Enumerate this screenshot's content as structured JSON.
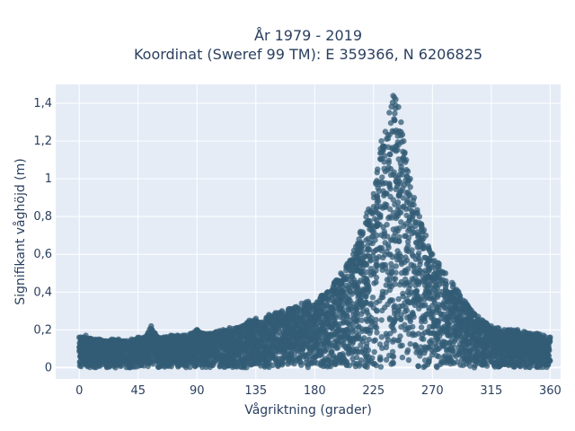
{
  "chart_data": {
    "type": "scatter",
    "title_line1": "År 1979 - 2019",
    "title_line2": "Koordinat (Sweref 99 TM): E 359366, N 6206825",
    "xlabel": "Vågriktning (grader)",
    "ylabel": "Signifikant våghöjd (m)",
    "xlim": [
      -18,
      368
    ],
    "ylim": [
      -0.06,
      1.5
    ],
    "x_ticks": [
      0,
      45,
      90,
      135,
      180,
      225,
      270,
      315,
      360
    ],
    "x_tick_labels": [
      "0",
      "45",
      "90",
      "135",
      "180",
      "225",
      "270",
      "315",
      "360"
    ],
    "y_ticks": [
      0,
      0.2,
      0.4,
      0.6,
      0.8,
      1.0,
      1.2,
      1.4
    ],
    "y_tick_labels": [
      "0",
      "0,2",
      "0,4",
      "0,6",
      "0,8",
      "1",
      "1,2",
      "1,4"
    ],
    "grid": true,
    "marker_color": "#335c75",
    "background": "#e5ecf6",
    "series": [
      {
        "x": [
          0,
          5,
          10,
          15,
          20,
          25,
          30,
          35,
          40,
          45,
          50,
          55,
          60,
          65,
          70,
          75,
          80,
          85,
          90,
          95,
          100,
          105,
          110,
          115,
          120,
          125,
          130,
          135,
          140,
          145,
          150,
          155,
          160,
          165,
          170,
          175,
          180,
          185,
          190,
          195,
          200,
          205,
          210,
          215,
          220,
          225,
          228,
          231,
          234,
          237,
          240,
          242,
          244,
          246,
          248,
          250,
          253,
          256,
          260,
          265,
          270,
          275,
          280,
          285,
          290,
          295,
          300,
          305,
          310,
          315,
          320,
          325,
          330,
          335,
          340,
          345,
          350,
          355,
          360
        ],
        "y_max": [
          0.16,
          0.17,
          0.15,
          0.15,
          0.14,
          0.15,
          0.15,
          0.14,
          0.15,
          0.16,
          0.16,
          0.22,
          0.16,
          0.16,
          0.17,
          0.17,
          0.17,
          0.18,
          0.2,
          0.18,
          0.18,
          0.19,
          0.2,
          0.21,
          0.21,
          0.22,
          0.25,
          0.26,
          0.24,
          0.28,
          0.29,
          0.3,
          0.31,
          0.32,
          0.34,
          0.35,
          0.33,
          0.38,
          0.4,
          0.45,
          0.5,
          0.55,
          0.62,
          0.72,
          0.82,
          0.92,
          1.05,
          1.2,
          1.25,
          1.35,
          1.44,
          1.42,
          1.38,
          1.3,
          1.2,
          1.1,
          1.0,
          0.9,
          0.8,
          0.7,
          0.6,
          0.55,
          0.5,
          0.45,
          0.4,
          0.35,
          0.3,
          0.27,
          0.24,
          0.22,
          0.21,
          0.2,
          0.2,
          0.2,
          0.19,
          0.18,
          0.18,
          0.17,
          0.16
        ]
      }
    ]
  }
}
